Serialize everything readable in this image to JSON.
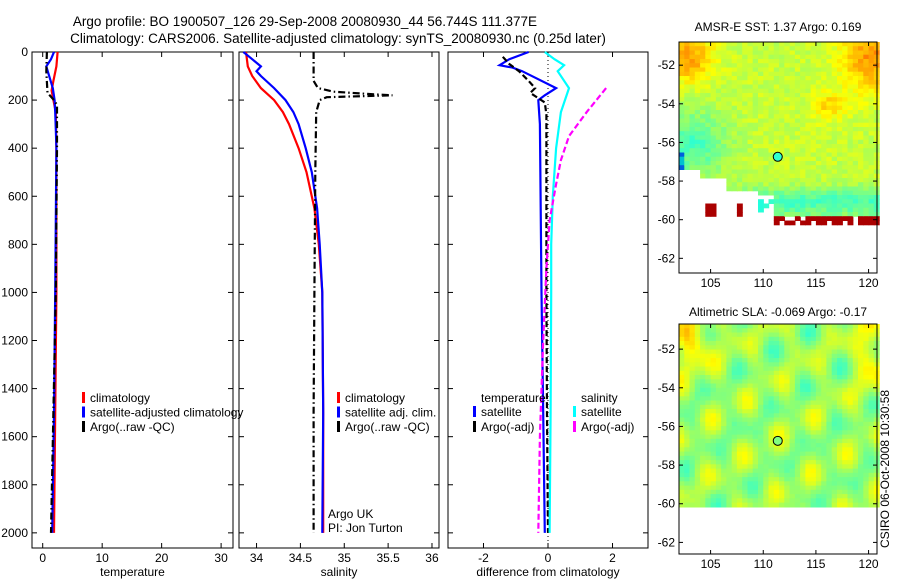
{
  "title": {
    "line1": "Argo profile: BO 1900507_126 29-Sep-2008 20080930_44 56.744S 111.377E",
    "line2": "Climatology: CARS2006. Satellite-adjusted climatology: synTS_20080930.nc (0.25d later)"
  },
  "credit": "CSIRO 06-Oct-2008 10:30:58",
  "argo_note": {
    "line1": "Argo UK",
    "line2": "PI: Jon Turton"
  },
  "colors": {
    "climatology": "#ff0000",
    "satellite": "#0000ff",
    "argo": "#000000",
    "sal_satellite": "#00ffff",
    "sal_argo": "#ff00ff"
  },
  "chart_data": [
    {
      "type": "line",
      "xlabel": "temperature",
      "ylabel": "",
      "xlim": [
        -1.8,
        32
      ],
      "ylim": [
        2063,
        0
      ],
      "xticks": [
        "0",
        "10",
        "20",
        "30"
      ],
      "xtick_values": [
        0,
        10,
        20,
        30
      ],
      "yticks": [
        "0",
        "200",
        "400",
        "600",
        "800",
        "1000",
        "1200",
        "1400",
        "1600",
        "1800",
        "2000"
      ],
      "ytick_values": [
        0,
        200,
        400,
        600,
        800,
        1000,
        1200,
        1400,
        1600,
        1800,
        2000
      ],
      "legend": [
        "climatology",
        "satellite-adjusted climatology",
        "Argo(..raw -QC)"
      ],
      "series": [
        {
          "name": "climatology",
          "color": "#ff0000",
          "style": "solid",
          "depth": [
            0,
            60,
            120,
            160,
            200,
            250,
            400,
            1000,
            1500,
            2000
          ],
          "values": [
            2.5,
            2.3,
            1.8,
            1.5,
            1.8,
            2.2,
            2.3,
            2.3,
            2.1,
            1.9
          ]
        },
        {
          "name": "satellite-adjusted climatology",
          "color": "#0000ff",
          "style": "solid",
          "depth": [
            0,
            30,
            60,
            150,
            200,
            250,
            320,
            400,
            1000,
            1500,
            2000
          ],
          "values": [
            1.9,
            1.4,
            0.6,
            1.7,
            2.0,
            2.1,
            2.2,
            2.3,
            2.1,
            1.9,
            1.6
          ]
        },
        {
          "name": "Argo(..raw -QC)",
          "color": "#000000",
          "style": "dashdot",
          "depth": [
            0,
            80,
            170,
            200,
            220,
            400,
            1000,
            1500,
            2000
          ],
          "values": [
            0.7,
            0.6,
            0.8,
            1.9,
            2.4,
            2.4,
            2.2,
            1.8,
            1.4
          ]
        }
      ]
    },
    {
      "type": "line",
      "xlabel": "salinity",
      "xlim": [
        33.8,
        36.08
      ],
      "ylim": [
        2063,
        0
      ],
      "xticks": [
        "34",
        "34.5",
        "35",
        "35.5",
        "36"
      ],
      "xtick_values": [
        34,
        34.5,
        35,
        35.5,
        36
      ],
      "legend": [
        "climatology",
        "satellite adj. clim.",
        "Argo(..raw -QC)"
      ],
      "series": [
        {
          "name": "climatology",
          "color": "#ff0000",
          "style": "solid",
          "depth": [
            0,
            60,
            100,
            150,
            200,
            250,
            300,
            400,
            500,
            650,
            800,
            1000,
            1500,
            2000
          ],
          "values": [
            33.88,
            33.9,
            33.95,
            34.05,
            34.2,
            34.3,
            34.37,
            34.48,
            34.57,
            34.66,
            34.71,
            34.75,
            34.76,
            34.76
          ]
        },
        {
          "name": "satellite adj. clim.",
          "color": "#0000ff",
          "style": "solid",
          "depth": [
            0,
            30,
            60,
            80,
            100,
            150,
            200,
            250,
            300,
            400,
            500,
            650,
            800,
            1000,
            1500,
            2000
          ],
          "values": [
            33.85,
            33.95,
            34.05,
            34.0,
            34.05,
            34.2,
            34.33,
            34.42,
            34.48,
            34.56,
            34.63,
            34.69,
            34.72,
            34.75,
            34.76,
            34.75
          ]
        },
        {
          "name": "Argo(..raw -QC)",
          "color": "#000000",
          "style": "dashdot",
          "depth": [
            0,
            120,
            150,
            165,
            175,
            180,
            188,
            200,
            250,
            500,
            1000,
            1500,
            2000
          ],
          "values": [
            34.65,
            34.65,
            34.7,
            34.88,
            35.3,
            35.55,
            34.8,
            34.72,
            34.68,
            34.67,
            34.66,
            34.65,
            34.65
          ]
        }
      ]
    },
    {
      "type": "line",
      "xlabel": "difference from climatology",
      "xlim": [
        -3.1,
        3.1
      ],
      "ylim": [
        2063,
        0
      ],
      "xticks": [
        "-2",
        "0",
        "2"
      ],
      "xtick_values": [
        -2,
        0,
        2
      ],
      "legend_headers": [
        "temperature",
        "salinity"
      ],
      "legend": [
        "satellite",
        "Argo(-adj)",
        "satellite",
        "Argo(-adj)"
      ],
      "series": [
        {
          "name": "temperature satellite",
          "color": "#0000ff",
          "style": "solid",
          "depth": [
            0,
            30,
            55,
            65,
            80,
            150,
            180,
            200,
            300,
            1000,
            1500,
            2000
          ],
          "values": [
            -0.6,
            -1.2,
            -1.5,
            -1.1,
            -0.8,
            0.25,
            -0.1,
            -0.3,
            -0.25,
            -0.2,
            -0.15,
            -0.1
          ]
        },
        {
          "name": "temperature Argo(-adj)",
          "color": "#000000",
          "style": "dashed",
          "depth": [
            20,
            50,
            80,
            120,
            150,
            170,
            210,
            260,
            500,
            1000,
            1500,
            2000
          ],
          "values": [
            -1.4,
            -1.2,
            -0.9,
            -0.6,
            -0.4,
            -0.55,
            -0.1,
            -0.05,
            -0.05,
            -0.05,
            -0.03,
            0.0
          ]
        },
        {
          "name": "salinity satellite",
          "color": "#00ffff",
          "style": "solid",
          "depth": [
            0,
            30,
            55,
            80,
            150,
            250,
            400,
            600,
            800,
            1000,
            1500,
            2000
          ],
          "values": [
            -0.1,
            0.2,
            0.5,
            0.3,
            0.65,
            0.4,
            0.25,
            0.15,
            0.1,
            0.1,
            0.08,
            0.05
          ]
        },
        {
          "name": "salinity Argo(-adj)",
          "color": "#ff00ff",
          "style": "dashed",
          "depth": [
            150,
            250,
            350,
            450,
            550,
            700,
            900,
            1200,
            1600,
            2000
          ],
          "values": [
            1.8,
            1.2,
            0.65,
            0.4,
            0.25,
            0.05,
            -0.05,
            -0.15,
            -0.25,
            -0.3
          ]
        }
      ]
    },
    {
      "type": "heatmap",
      "title": "AMSR-E SST: 1.37 Argo: 0.169",
      "xlim": [
        102,
        120.8
      ],
      "ylim": [
        -62.76,
        -50.8
      ],
      "xticks": [
        "105",
        "110",
        "115",
        "120"
      ],
      "xtick_values": [
        105,
        110,
        115,
        120
      ],
      "yticks": [
        "-52",
        "-54",
        "-56",
        "-58",
        "-60",
        "-62"
      ],
      "ytick_values": [
        -52,
        -54,
        -56,
        -58,
        -60,
        -62
      ],
      "argo_position": {
        "lon": 111.377,
        "lat": -56.744
      }
    },
    {
      "type": "heatmap",
      "title": "Altimetric SLA: -0.069 Argo: -0.17",
      "xlim": [
        102,
        120.8
      ],
      "ylim": [
        -62.6,
        -50.7
      ],
      "xticks": [
        "105",
        "110",
        "115",
        "120"
      ],
      "xtick_values": [
        105,
        110,
        115,
        120
      ],
      "yticks": [
        "-52",
        "-54",
        "-56",
        "-58",
        "-60",
        "-62"
      ],
      "ytick_values": [
        -52,
        -54,
        -56,
        -58,
        -60,
        -62
      ],
      "argo_position": {
        "lon": 111.377,
        "lat": -56.744
      }
    }
  ]
}
